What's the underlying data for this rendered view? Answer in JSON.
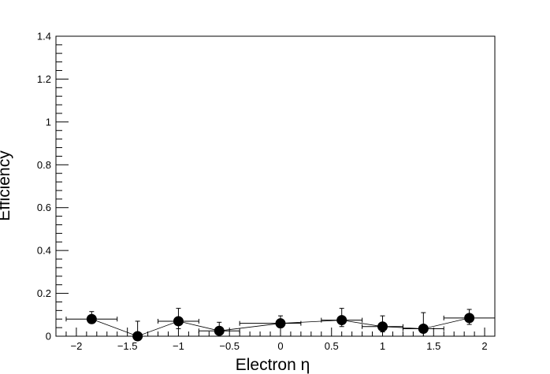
{
  "chart_data": {
    "type": "scatter",
    "title": "",
    "xlabel": "Electron η",
    "ylabel": "Efficiency",
    "xlim": [
      -2.2,
      2.1
    ],
    "ylim": [
      0,
      1.4
    ],
    "grid": false,
    "x_ticks": [
      -2,
      -1.5,
      -1,
      -0.5,
      0,
      0.5,
      1,
      1.5,
      2
    ],
    "x_tick_labels": [
      "−2",
      "−1.5",
      "−1",
      "−0.5",
      "0",
      "0.5",
      "1",
      "1.5",
      "2"
    ],
    "y_ticks": [
      0,
      0.2,
      0.4,
      0.6,
      0.8,
      1,
      1.2,
      1.4
    ],
    "y_tick_labels": [
      "0",
      "0.2",
      "0.4",
      "0.6",
      "0.8",
      "1",
      "1.2",
      "1.4"
    ],
    "series": [
      {
        "style": "points-with-errorbars-connected",
        "color": "#000000",
        "points": [
          {
            "x": -1.85,
            "y": 0.08,
            "x_err": [
              0.25,
              0.25
            ],
            "y_err": [
              0.02,
              0.035
            ]
          },
          {
            "x": -1.4,
            "y": 0.0,
            "x_err": [
              0.0,
              0.0
            ],
            "y_err": [
              0.0,
              0.07
            ]
          },
          {
            "x": -1.0,
            "y": 0.07,
            "x_err": [
              0.2,
              0.2
            ],
            "y_err": [
              0.035,
              0.06
            ]
          },
          {
            "x": -0.6,
            "y": 0.025,
            "x_err": [
              0.2,
              0.2
            ],
            "y_err": [
              0.025,
              0.04
            ]
          },
          {
            "x": 0.0,
            "y": 0.06,
            "x_err": [
              0.4,
              0.2
            ],
            "y_err": [
              0.02,
              0.035
            ]
          },
          {
            "x": 0.6,
            "y": 0.075,
            "x_err": [
              0.2,
              0.2
            ],
            "y_err": [
              0.03,
              0.055
            ]
          },
          {
            "x": 1.0,
            "y": 0.045,
            "x_err": [
              0.2,
              0.2
            ],
            "y_err": [
              0.025,
              0.05
            ]
          },
          {
            "x": 1.4,
            "y": 0.035,
            "x_err": [
              0.2,
              0.2
            ],
            "y_err": [
              0.035,
              0.075
            ]
          },
          {
            "x": 1.85,
            "y": 0.085,
            "x_err": [
              0.25,
              0.25
            ],
            "y_err": [
              0.03,
              0.04
            ]
          }
        ]
      }
    ]
  }
}
